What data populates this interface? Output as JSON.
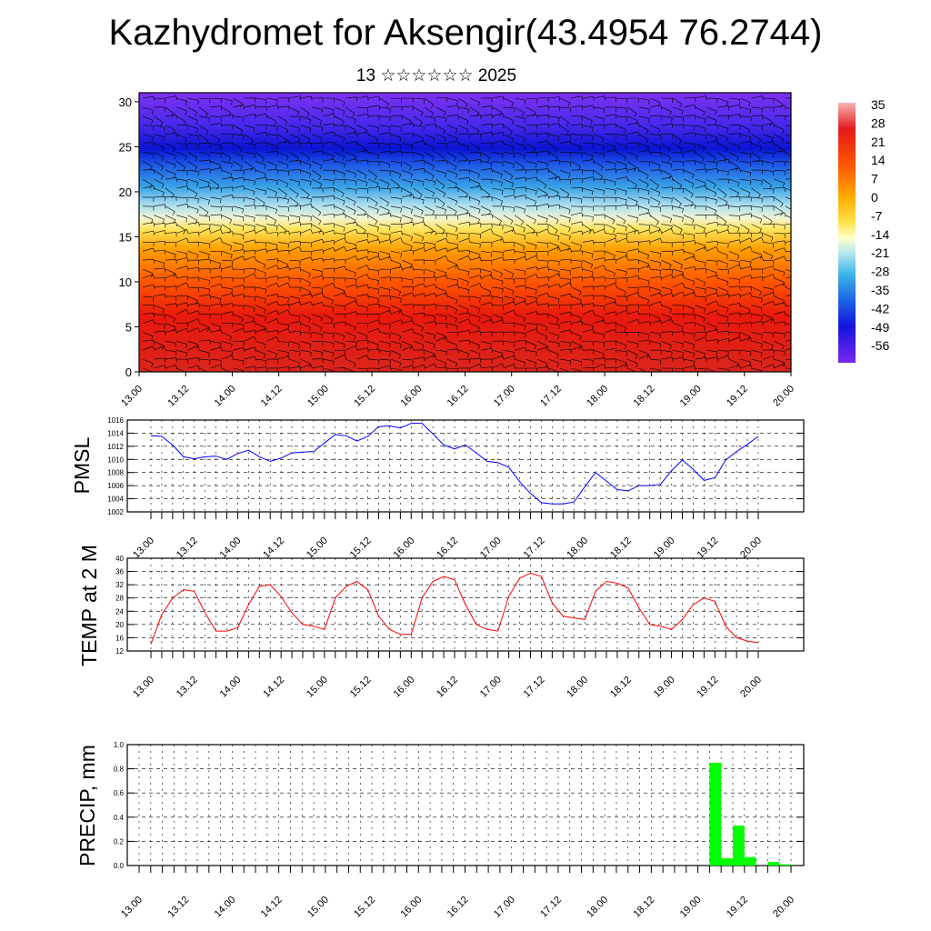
{
  "header": {
    "title": "Kazhydromet for Aksengir(43.4954 76.2744)",
    "subtitle": "13 ☆☆☆☆☆☆ 2025"
  },
  "chart_data": [
    {
      "type": "heatmap",
      "title": "",
      "x_tick_labels": [
        "13.00",
        "13.12",
        "14.00",
        "14.12",
        "15.00",
        "15.12",
        "16.00",
        "16.12",
        "17.00",
        "17.12",
        "18.00",
        "18.12",
        "19.00",
        "19.12",
        "20.00"
      ],
      "y_ticks": [
        0,
        5,
        10,
        15,
        20,
        25,
        30
      ],
      "xlim": [
        0,
        168
      ],
      "ylim": [
        0,
        31
      ],
      "colorbar": {
        "labels": [
          "35",
          "28",
          "21",
          "14",
          "7",
          "0",
          "-7",
          "-14",
          "-21",
          "-28",
          "-35",
          "-42",
          "-49",
          "-56"
        ],
        "colors": [
          "#f2a0a0",
          "#e31a1c",
          "#ff5500",
          "#ffaa00",
          "#ffe24d",
          "#ffffb0",
          "#b4e6f0",
          "#3cb4e6",
          "#1e64e6",
          "#1414dc",
          "#7828f0"
        ]
      },
      "field": "temperature by height with wind barbs",
      "levels": [
        0,
        10,
        15,
        20,
        24,
        31
      ],
      "level_values": [
        30,
        15,
        -5,
        -30,
        -56,
        -45
      ]
    },
    {
      "type": "line",
      "ylabel": "PMSL",
      "x_tick_labels": [
        "13.00",
        "13.12",
        "14.00",
        "14.12",
        "15.00",
        "15.12",
        "16.00",
        "16.12",
        "17.00",
        "17.12",
        "18.00",
        "18.12",
        "19.00",
        "19.12",
        "20.00"
      ],
      "ylim": [
        1002,
        1016
      ],
      "y_ticks": [
        1002,
        1004,
        1006,
        1008,
        1010,
        1012,
        1014,
        1016
      ],
      "color": "#0000ff",
      "values": [
        1013.6,
        1013.5,
        1012.2,
        1010.4,
        1010.1,
        1010.4,
        1010.5,
        1010.0,
        1010.9,
        1011.4,
        1010.4,
        1009.7,
        1010.2,
        1011.0,
        1011.1,
        1011.2,
        1012.5,
        1013.8,
        1013.6,
        1012.8,
        1013.5,
        1015.0,
        1015.1,
        1014.8,
        1015.5,
        1015.5,
        1013.9,
        1012.2,
        1011.6,
        1012.2,
        1011.0,
        1009.7,
        1009.5,
        1008.8,
        1006.6,
        1004.8,
        1003.4,
        1003.2,
        1003.2,
        1003.5,
        1005.8,
        1008.0,
        1006.7,
        1005.4,
        1005.2,
        1006.0,
        1006.0,
        1006.2,
        1008.3,
        1009.9,
        1008.5,
        1006.8,
        1007.2,
        1009.9,
        1011.2,
        1012.3,
        1013.5
      ]
    },
    {
      "type": "line",
      "ylabel": "TEMP at 2 M",
      "x_tick_labels": [
        "13.00",
        "13.12",
        "14.00",
        "14.12",
        "15.00",
        "15.12",
        "16.00",
        "16.12",
        "17.00",
        "17.12",
        "18.00",
        "18.12",
        "19.00",
        "19.12",
        "20.00"
      ],
      "ylim": [
        12,
        40
      ],
      "y_ticks": [
        12,
        16,
        20,
        24,
        28,
        32,
        36,
        40
      ],
      "color": "#ff0000",
      "values": [
        14.0,
        23.0,
        28.0,
        30.5,
        30.0,
        23.5,
        18.0,
        18.0,
        19.0,
        26.0,
        31.5,
        32.0,
        28.5,
        23.5,
        20.0,
        19.5,
        18.5,
        28.0,
        31.5,
        33.0,
        30.5,
        22.5,
        18.5,
        17.0,
        17.0,
        28.0,
        33.0,
        34.5,
        33.5,
        26.0,
        20.0,
        18.5,
        18.0,
        28.5,
        34.0,
        35.5,
        34.5,
        26.5,
        22.5,
        22.0,
        21.5,
        30.0,
        33.0,
        32.5,
        31.0,
        25.0,
        20.0,
        19.5,
        18.5,
        21.5,
        26.0,
        28.0,
        27.0,
        19.5,
        16.0,
        15.0,
        14.5
      ]
    },
    {
      "type": "bar",
      "ylabel": "PRECIP, mm",
      "x_tick_labels": [
        "13.00",
        "13.12",
        "14.00",
        "14.12",
        "15.00",
        "15.12",
        "16.00",
        "16.12",
        "17.00",
        "17.12",
        "18.00",
        "18.12",
        "19.00",
        "19.12",
        "20.00"
      ],
      "ylim": [
        0,
        1.0
      ],
      "y_ticks": [
        "0.0",
        "0.2",
        "0.4",
        "0.6",
        "0.8",
        "1.0"
      ],
      "color": "#00ff00",
      "x": [
        150,
        153,
        156,
        159,
        162,
        165,
        168
      ],
      "values": [
        0.85,
        0.06,
        0.33,
        0.07,
        0.0,
        0.03,
        0.01
      ]
    }
  ]
}
